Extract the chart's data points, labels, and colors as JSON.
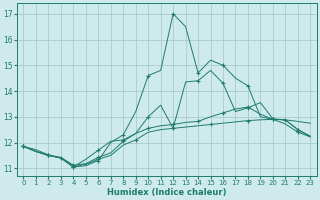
{
  "xlabel": "Humidex (Indice chaleur)",
  "background_color": "#ceeaea",
  "grid_color": "#aacccc",
  "line_color": "#1e7b6e",
  "xlim": [
    -0.5,
    23.5
  ],
  "ylim": [
    10.7,
    17.4
  ],
  "yticks": [
    11,
    12,
    13,
    14,
    15,
    16,
    17
  ],
  "xticks": [
    0,
    1,
    2,
    3,
    4,
    5,
    6,
    7,
    8,
    9,
    10,
    11,
    12,
    13,
    14,
    15,
    16,
    17,
    18,
    19,
    20,
    21,
    22,
    23
  ],
  "series": [
    [
      11.85,
      11.65,
      11.5,
      11.4,
      11.05,
      11.15,
      11.35,
      11.5,
      11.9,
      12.1,
      12.4,
      12.5,
      12.55,
      12.6,
      12.65,
      12.7,
      12.75,
      12.8,
      12.85,
      12.88,
      12.9,
      12.88,
      12.82,
      12.75
    ],
    [
      11.85,
      11.65,
      11.5,
      11.4,
      11.05,
      11.35,
      11.7,
      12.05,
      12.1,
      12.35,
      13.0,
      13.45,
      12.55,
      14.35,
      14.4,
      14.8,
      14.3,
      13.2,
      13.35,
      13.55,
      12.92,
      12.88,
      12.5,
      12.25
    ],
    [
      11.85,
      11.65,
      11.5,
      11.4,
      11.05,
      11.1,
      11.3,
      12.0,
      12.3,
      13.2,
      14.6,
      14.8,
      17.0,
      16.5,
      14.7,
      15.2,
      15.0,
      14.5,
      14.2,
      13.0,
      12.9,
      12.72,
      12.4,
      12.22
    ],
    [
      11.85,
      11.72,
      11.52,
      11.42,
      11.12,
      11.18,
      11.42,
      11.6,
      12.05,
      12.35,
      12.55,
      12.65,
      12.7,
      12.78,
      12.82,
      13.0,
      13.15,
      13.3,
      13.38,
      13.1,
      12.9,
      12.88,
      12.5,
      12.22
    ]
  ],
  "marker_every": [
    [
      0,
      3,
      6,
      9,
      12,
      15,
      18,
      21
    ],
    [
      0,
      2,
      4,
      6,
      8,
      10,
      12,
      14,
      16,
      18,
      20,
      22
    ],
    [
      0,
      2,
      4,
      6,
      8,
      10,
      12,
      14,
      16,
      18,
      20,
      22
    ],
    [
      0,
      2,
      4,
      6,
      8,
      10,
      12,
      14,
      16,
      18,
      20,
      22
    ]
  ]
}
